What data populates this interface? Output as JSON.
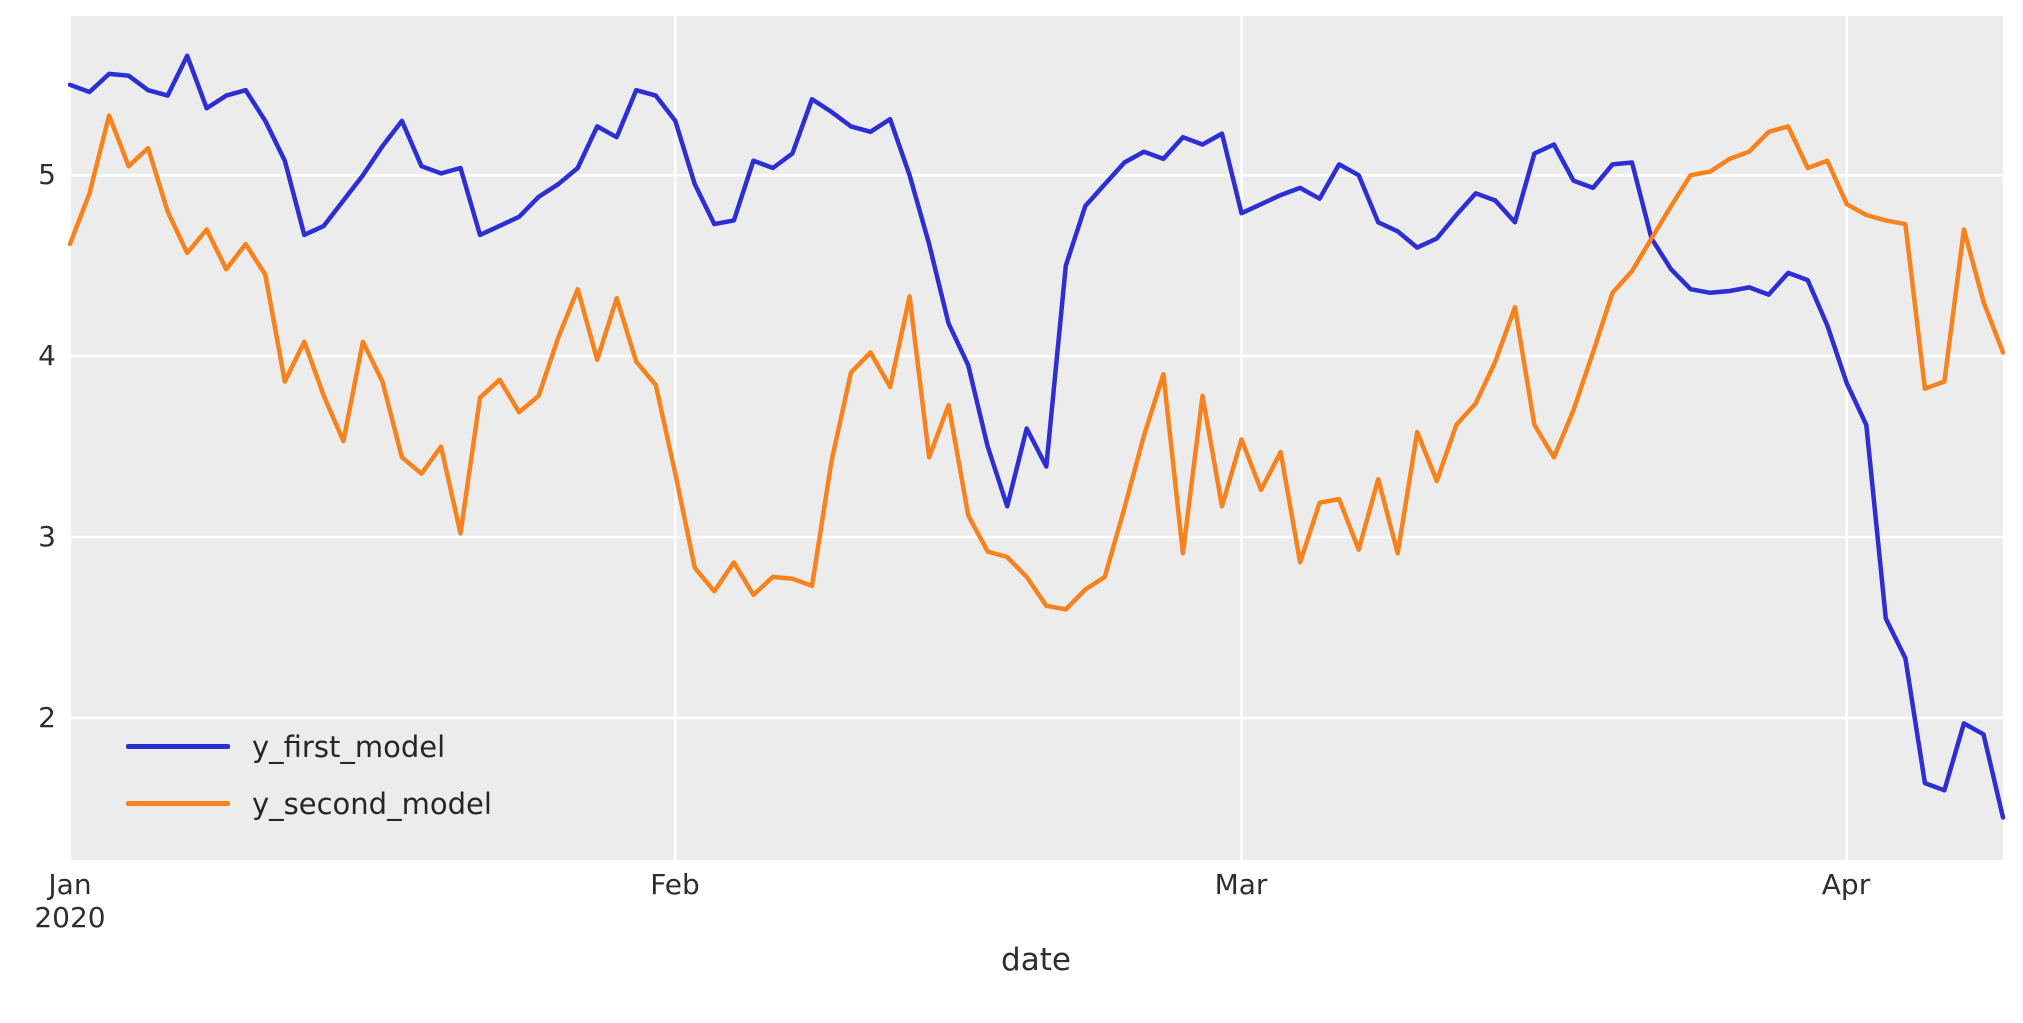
{
  "figure": {
    "background": "#ffffff",
    "plot_background": "#ececec",
    "grid_color": "#ffffff",
    "tick_text_color": "#2e2e2e"
  },
  "legend": {
    "entries": [
      {
        "label": "y_first_model",
        "color": "#2d2ed3"
      },
      {
        "label": "y_second_model",
        "color": "#f8821e"
      }
    ]
  },
  "chart_data": {
    "type": "line",
    "title": "",
    "xlabel": "date",
    "ylabel": "",
    "grid": true,
    "legend_position": "lower-left-inside",
    "x_unit": "daily dates from 2020-01-01 to 2020-04-09",
    "xlim_days": [
      0,
      99
    ],
    "ylim": [
      1.215,
      5.88
    ],
    "y_ticks": [
      "2",
      "3",
      "4",
      "5"
    ],
    "y_tick_values": [
      2,
      3,
      4,
      5
    ],
    "x_ticks": [
      {
        "label": "Jan",
        "sublabel": "2020",
        "day": 0
      },
      {
        "label": "Feb",
        "sublabel": "",
        "day": 31
      },
      {
        "label": "Mar",
        "sublabel": "",
        "day": 60
      },
      {
        "label": "Apr",
        "sublabel": "",
        "day": 91
      }
    ],
    "series": [
      {
        "name": "y_first_model",
        "color": "#2d2ed3",
        "values": [
          5.5,
          5.46,
          5.56,
          5.55,
          5.47,
          5.44,
          5.66,
          5.37,
          5.44,
          5.47,
          5.3,
          5.08,
          4.67,
          4.72,
          4.86,
          5.0,
          5.16,
          5.3,
          5.05,
          5.01,
          5.04,
          4.67,
          4.72,
          4.77,
          4.88,
          4.95,
          5.04,
          5.27,
          5.21,
          5.47,
          5.44,
          5.3,
          4.95,
          4.73,
          4.75,
          5.08,
          5.04,
          5.12,
          5.42,
          5.35,
          5.27,
          5.24,
          5.31,
          5.0,
          4.62,
          4.18,
          3.95,
          3.5,
          3.17,
          3.6,
          3.39,
          4.5,
          4.83,
          4.95,
          5.07,
          5.13,
          5.09,
          5.21,
          5.17,
          5.23,
          4.79,
          4.84,
          4.89,
          4.93,
          4.87,
          5.06,
          5.0,
          4.74,
          4.69,
          4.6,
          4.65,
          4.78,
          4.9,
          4.86,
          4.74,
          5.12,
          5.17,
          4.97,
          4.93,
          5.06,
          5.07,
          4.65,
          4.48,
          4.37,
          4.35,
          4.36,
          4.38,
          4.34,
          4.46,
          4.42,
          4.17,
          3.85,
          3.62,
          2.55,
          2.33,
          1.64,
          1.6,
          1.97,
          1.91,
          1.45
        ]
      },
      {
        "name": "y_second_model",
        "color": "#f8821e",
        "values": [
          4.62,
          4.9,
          5.33,
          5.05,
          5.15,
          4.8,
          4.57,
          4.7,
          4.48,
          4.62,
          4.45,
          3.86,
          4.08,
          3.78,
          3.53,
          4.08,
          3.86,
          3.44,
          3.35,
          3.5,
          3.02,
          3.77,
          3.87,
          3.69,
          3.78,
          4.1,
          4.37,
          3.98,
          4.32,
          3.97,
          3.84,
          3.35,
          2.83,
          2.7,
          2.86,
          2.68,
          2.78,
          2.77,
          2.73,
          3.42,
          3.91,
          4.02,
          3.83,
          4.33,
          3.44,
          3.73,
          3.12,
          2.92,
          2.89,
          2.78,
          2.62,
          2.6,
          2.71,
          2.78,
          3.16,
          3.56,
          3.9,
          2.91,
          3.78,
          3.17,
          3.54,
          3.26,
          3.47,
          2.86,
          3.19,
          3.21,
          2.93,
          3.32,
          2.91,
          3.58,
          3.31,
          3.62,
          3.74,
          3.97,
          4.27,
          3.62,
          3.44,
          3.7,
          4.02,
          4.35,
          4.47,
          4.65,
          4.83,
          5.0,
          5.02,
          5.09,
          5.13,
          5.24,
          5.27,
          5.04,
          5.08,
          4.84,
          4.78,
          4.75,
          4.73,
          3.82,
          3.86,
          4.7,
          4.3,
          4.02
        ]
      }
    ]
  }
}
